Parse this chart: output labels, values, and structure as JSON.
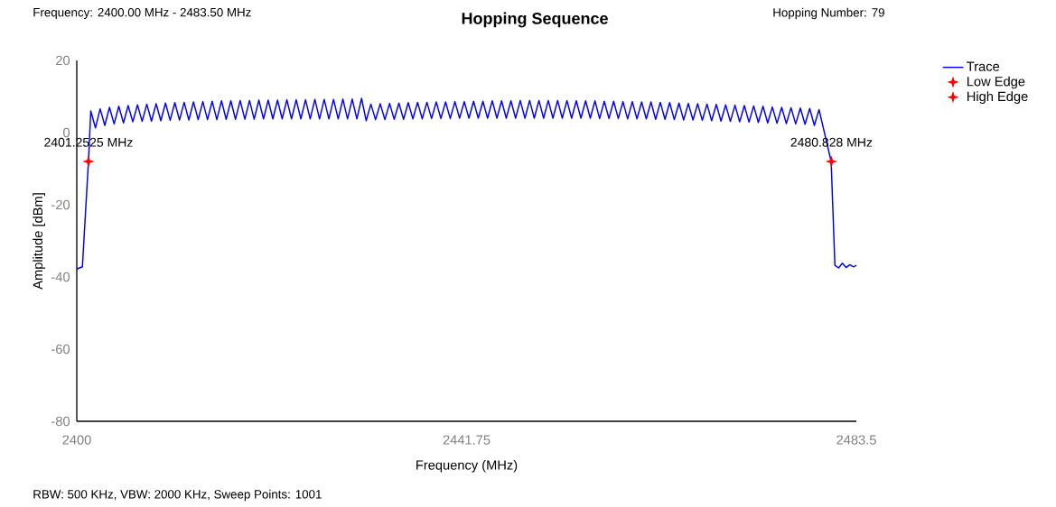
{
  "chart_data": {
    "type": "line",
    "title": "Hopping Sequence",
    "xlabel": "Frequency (MHz)",
    "ylabel": "Amplitude [dBm]",
    "xlim": [
      2400,
      2483.5
    ],
    "ylim": [
      -80,
      20
    ],
    "xticks": [
      2400,
      2441.75,
      2483.5
    ],
    "yticks": [
      -80,
      -60,
      -40,
      -20,
      0,
      20
    ],
    "grid": false,
    "legend": "right",
    "annotations": [
      "Frequency: 2400.00 MHz - 2483.50 MHz",
      "Hopping Number: 79",
      "RBW: 500 KHz,  VBW: 2000 KHz,  Sweep Points: 1001",
      {
        "text": "2401.2525 MHz",
        "x": 2401.2525,
        "y": -8
      },
      {
        "text": "2480.828 MHz",
        "x": 2480.828,
        "y": -8
      }
    ],
    "series": [
      {
        "name": "Trace",
        "type": "line",
        "color": "#0000ff",
        "marker": "none",
        "line_style": "solid",
        "x": [
          2400,
          2400.6,
          2401.25,
          2401.5,
          2402,
          2402.5,
          2403,
          2403.5,
          2404,
          2404.5,
          2405,
          2405.5,
          2406,
          2406.5,
          2407,
          2407.5,
          2408,
          2408.5,
          2409,
          2409.5,
          2410,
          2410.5,
          2411,
          2411.5,
          2412,
          2412.5,
          2413,
          2413.5,
          2414,
          2414.5,
          2415,
          2415.5,
          2416,
          2416.5,
          2417,
          2417.5,
          2418,
          2418.5,
          2419,
          2419.5,
          2420,
          2420.5,
          2421,
          2421.5,
          2422,
          2422.5,
          2423,
          2423.5,
          2424,
          2424.5,
          2425,
          2425.5,
          2426,
          2426.5,
          2427,
          2427.5,
          2428,
          2428.5,
          2429,
          2429.5,
          2430,
          2430.5,
          2431,
          2431.5,
          2432,
          2432.5,
          2433,
          2433.5,
          2434,
          2434.5,
          2435,
          2435.5,
          2436,
          2436.5,
          2437,
          2437.5,
          2438,
          2438.5,
          2439,
          2439.5,
          2440,
          2440.5,
          2441,
          2441.5,
          2442,
          2442.5,
          2443,
          2443.5,
          2444,
          2444.5,
          2445,
          2445.5,
          2446,
          2446.5,
          2447,
          2447.5,
          2448,
          2448.5,
          2449,
          2449.5,
          2450,
          2450.5,
          2451,
          2451.5,
          2452,
          2452.5,
          2453,
          2453.5,
          2454,
          2454.5,
          2455,
          2455.5,
          2456,
          2456.5,
          2457,
          2457.5,
          2458,
          2458.5,
          2459,
          2459.5,
          2460,
          2460.5,
          2461,
          2461.5,
          2462,
          2462.5,
          2463,
          2463.5,
          2464,
          2464.5,
          2465,
          2465.5,
          2466,
          2466.5,
          2467,
          2467.5,
          2468,
          2468.5,
          2469,
          2469.5,
          2470,
          2470.5,
          2471,
          2471.5,
          2472,
          2472.5,
          2473,
          2473.5,
          2474,
          2474.5,
          2475,
          2475.5,
          2476,
          2476.5,
          2477,
          2477.5,
          2478,
          2478.5,
          2479,
          2479.5,
          2480.8,
          2481.2,
          2481.6,
          2482.0,
          2482.4,
          2482.8,
          2483.2,
          2483.5
        ],
        "values": [
          -37.8,
          -37.2,
          -8,
          6.0,
          1.3,
          6.6,
          2.0,
          7.0,
          2.4,
          7.3,
          2.7,
          7.5,
          3.0,
          7.7,
          3.1,
          7.9,
          3.2,
          8.0,
          3.3,
          8.2,
          3.4,
          8.3,
          3.5,
          8.4,
          3.5,
          8.5,
          3.6,
          8.6,
          3.6,
          8.7,
          3.6,
          8.8,
          3.7,
          8.8,
          3.7,
          8.9,
          3.7,
          8.9,
          3.7,
          9.0,
          3.8,
          9.0,
          3.8,
          9.0,
          3.8,
          9.1,
          3.8,
          9.1,
          3.8,
          9.1,
          3.8,
          9.2,
          3.8,
          9.2,
          3.8,
          9.2,
          3.8,
          9.3,
          3.8,
          9.3,
          3.8,
          9.5,
          3.3,
          7.9,
          3.6,
          8.0,
          3.6,
          8.1,
          3.7,
          8.2,
          3.7,
          8.3,
          3.8,
          8.4,
          3.8,
          8.4,
          3.9,
          8.5,
          3.9,
          8.5,
          3.9,
          8.6,
          4.0,
          8.6,
          4.0,
          8.7,
          4.0,
          8.7,
          4.0,
          8.8,
          4.0,
          8.8,
          4.0,
          8.8,
          4.0,
          8.9,
          4.0,
          8.9,
          4.0,
          8.9,
          4.0,
          8.9,
          4.0,
          8.9,
          4.0,
          8.9,
          4.0,
          8.8,
          4.0,
          8.8,
          4.0,
          8.8,
          3.9,
          8.7,
          3.9,
          8.7,
          3.9,
          8.6,
          3.8,
          8.6,
          3.8,
          8.5,
          3.8,
          8.5,
          3.7,
          8.4,
          3.7,
          8.3,
          3.6,
          8.2,
          3.5,
          8.1,
          3.5,
          8.0,
          3.4,
          7.9,
          3.3,
          7.8,
          3.2,
          7.7,
          3.1,
          7.6,
          3.0,
          7.5,
          2.9,
          7.4,
          2.8,
          7.3,
          2.7,
          7.1,
          2.6,
          7.0,
          2.5,
          6.9,
          2.4,
          6.8,
          2.3,
          6.7,
          2.0,
          6.4,
          -8,
          -36.8,
          -37.5,
          -36.2,
          -37.4,
          -36.6,
          -37.2,
          -36.8
        ]
      },
      {
        "name": "Low Edge",
        "type": "scatter",
        "color": "#ff0000",
        "marker": "star",
        "x": [
          2401.2525
        ],
        "values": [
          -8
        ]
      },
      {
        "name": "High Edge",
        "type": "scatter",
        "color": "#ff0000",
        "marker": "star",
        "x": [
          2480.828
        ],
        "values": [
          -8
        ]
      }
    ]
  }
}
